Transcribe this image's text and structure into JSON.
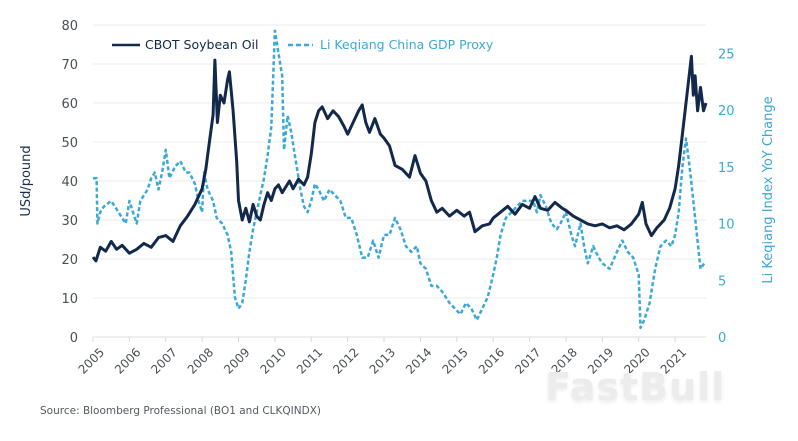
{
  "chart_data": {
    "type": "line",
    "title": "",
    "source": "Source: Bloomberg Professional (BO1 and CLKQINDX)",
    "watermark": "FastBull",
    "x": {
      "label": "",
      "range": [
        2005.0,
        2021.85
      ],
      "ticks": [
        "2005",
        "2006",
        "2007",
        "2008",
        "2009",
        "2010",
        "2011",
        "2012",
        "2013",
        "2014",
        "2015",
        "2016",
        "2017",
        "2018",
        "2019",
        "2020",
        "2021"
      ]
    },
    "y_left": {
      "label": "USd/pound",
      "range": [
        0,
        80
      ],
      "ticks": [
        0,
        10,
        20,
        30,
        40,
        50,
        60,
        70,
        80
      ],
      "grid": true
    },
    "y_right": {
      "label": "Li Keqiang Index YoY Change",
      "range": [
        0,
        27.5
      ],
      "ticks": [
        0,
        5,
        10,
        15,
        20,
        25
      ]
    },
    "legend": {
      "placement": "top-left",
      "entries": [
        "CBOT Soybean Oil",
        "Li Keqiang China GDP Proxy"
      ]
    },
    "series": [
      {
        "name": "CBOT Soybean Oil",
        "axis": "left",
        "color": "#13294b",
        "style": "solid",
        "points": [
          [
            2005.0,
            20.5
          ],
          [
            2005.08,
            19.5
          ],
          [
            2005.2,
            23
          ],
          [
            2005.35,
            22
          ],
          [
            2005.5,
            24.5
          ],
          [
            2005.65,
            22.5
          ],
          [
            2005.8,
            23.5
          ],
          [
            2006.0,
            21.5
          ],
          [
            2006.2,
            22.5
          ],
          [
            2006.4,
            24
          ],
          [
            2006.6,
            23
          ],
          [
            2006.8,
            25.5
          ],
          [
            2007.0,
            26
          ],
          [
            2007.2,
            24.5
          ],
          [
            2007.4,
            28.5
          ],
          [
            2007.6,
            31
          ],
          [
            2007.8,
            34
          ],
          [
            2008.0,
            38
          ],
          [
            2008.1,
            43
          ],
          [
            2008.2,
            50
          ],
          [
            2008.3,
            57
          ],
          [
            2008.35,
            71
          ],
          [
            2008.42,
            55
          ],
          [
            2008.5,
            62
          ],
          [
            2008.6,
            60
          ],
          [
            2008.7,
            66
          ],
          [
            2008.75,
            68
          ],
          [
            2008.85,
            58
          ],
          [
            2008.95,
            45
          ],
          [
            2009.0,
            35
          ],
          [
            2009.1,
            30
          ],
          [
            2009.2,
            33
          ],
          [
            2009.3,
            29.5
          ],
          [
            2009.4,
            34
          ],
          [
            2009.5,
            31
          ],
          [
            2009.6,
            30
          ],
          [
            2009.7,
            34
          ],
          [
            2009.8,
            37
          ],
          [
            2009.9,
            35
          ],
          [
            2010.0,
            38
          ],
          [
            2010.1,
            39
          ],
          [
            2010.2,
            37
          ],
          [
            2010.4,
            40
          ],
          [
            2010.5,
            38
          ],
          [
            2010.65,
            40.5
          ],
          [
            2010.8,
            39
          ],
          [
            2010.9,
            41
          ],
          [
            2011.0,
            47
          ],
          [
            2011.1,
            55
          ],
          [
            2011.2,
            58
          ],
          [
            2011.3,
            59
          ],
          [
            2011.45,
            56
          ],
          [
            2011.6,
            58
          ],
          [
            2011.75,
            56.5
          ],
          [
            2011.9,
            54
          ],
          [
            2012.0,
            52
          ],
          [
            2012.15,
            55
          ],
          [
            2012.3,
            58
          ],
          [
            2012.4,
            59.5
          ],
          [
            2012.5,
            55
          ],
          [
            2012.6,
            52.5
          ],
          [
            2012.75,
            56
          ],
          [
            2012.9,
            52
          ],
          [
            2013.0,
            51
          ],
          [
            2013.15,
            49
          ],
          [
            2013.3,
            44
          ],
          [
            2013.5,
            43
          ],
          [
            2013.7,
            41
          ],
          [
            2013.85,
            46.5
          ],
          [
            2014.0,
            42
          ],
          [
            2014.15,
            40
          ],
          [
            2014.3,
            35
          ],
          [
            2014.45,
            32
          ],
          [
            2014.6,
            33
          ],
          [
            2014.8,
            31
          ],
          [
            2015.0,
            32.5
          ],
          [
            2015.2,
            31
          ],
          [
            2015.35,
            32
          ],
          [
            2015.5,
            27
          ],
          [
            2015.7,
            28.5
          ],
          [
            2015.9,
            29
          ],
          [
            2016.0,
            30.5
          ],
          [
            2016.2,
            32
          ],
          [
            2016.4,
            33.5
          ],
          [
            2016.6,
            31.5
          ],
          [
            2016.8,
            34
          ],
          [
            2017.0,
            33
          ],
          [
            2017.15,
            36
          ],
          [
            2017.3,
            33
          ],
          [
            2017.5,
            32.5
          ],
          [
            2017.7,
            34.5
          ],
          [
            2017.9,
            33
          ],
          [
            2018.0,
            32.5
          ],
          [
            2018.2,
            31
          ],
          [
            2018.4,
            30
          ],
          [
            2018.6,
            29
          ],
          [
            2018.8,
            28.5
          ],
          [
            2019.0,
            29
          ],
          [
            2019.2,
            28
          ],
          [
            2019.4,
            28.5
          ],
          [
            2019.6,
            27.5
          ],
          [
            2019.8,
            29
          ],
          [
            2020.0,
            31.5
          ],
          [
            2020.1,
            34.5
          ],
          [
            2020.2,
            29
          ],
          [
            2020.35,
            26
          ],
          [
            2020.5,
            28
          ],
          [
            2020.7,
            30
          ],
          [
            2020.85,
            33
          ],
          [
            2021.0,
            38
          ],
          [
            2021.1,
            44
          ],
          [
            2021.2,
            52
          ],
          [
            2021.3,
            60
          ],
          [
            2021.4,
            68
          ],
          [
            2021.45,
            72
          ],
          [
            2021.5,
            62
          ],
          [
            2021.55,
            67
          ],
          [
            2021.62,
            58
          ],
          [
            2021.7,
            64
          ],
          [
            2021.78,
            58
          ],
          [
            2021.85,
            60
          ]
        ]
      },
      {
        "name": "Li Keqiang China GDP Proxy",
        "axis": "right",
        "color": "#3aa9d6",
        "style": "dashed",
        "points": [
          [
            2005.0,
            14
          ],
          [
            2005.1,
            14
          ],
          [
            2005.12,
            10
          ],
          [
            2005.2,
            11
          ],
          [
            2005.3,
            11.5
          ],
          [
            2005.5,
            12
          ],
          [
            2005.7,
            11
          ],
          [
            2005.8,
            10.5
          ],
          [
            2005.9,
            10
          ],
          [
            2006.0,
            12
          ],
          [
            2006.1,
            11
          ],
          [
            2006.2,
            10
          ],
          [
            2006.3,
            12
          ],
          [
            2006.5,
            13
          ],
          [
            2006.6,
            14
          ],
          [
            2006.7,
            14.5
          ],
          [
            2006.8,
            13
          ],
          [
            2006.9,
            14.5
          ],
          [
            2007.0,
            16.5
          ],
          [
            2007.1,
            14
          ],
          [
            2007.25,
            15
          ],
          [
            2007.4,
            15.5
          ],
          [
            2007.55,
            14.5
          ],
          [
            2007.65,
            14.5
          ],
          [
            2007.8,
            13.5
          ],
          [
            2007.9,
            12
          ],
          [
            2008.0,
            11
          ],
          [
            2008.05,
            14.5
          ],
          [
            2008.15,
            13
          ],
          [
            2008.3,
            12
          ],
          [
            2008.4,
            10.5
          ],
          [
            2008.55,
            10
          ],
          [
            2008.7,
            9
          ],
          [
            2008.8,
            7.5
          ],
          [
            2008.9,
            3.5
          ],
          [
            2009.0,
            2.5
          ],
          [
            2009.1,
            3
          ],
          [
            2009.2,
            5
          ],
          [
            2009.3,
            7.5
          ],
          [
            2009.4,
            9.5
          ],
          [
            2009.5,
            11
          ],
          [
            2009.6,
            12.5
          ],
          [
            2009.7,
            14
          ],
          [
            2009.8,
            16
          ],
          [
            2009.9,
            18.5
          ],
          [
            2010.0,
            27
          ],
          [
            2010.1,
            25
          ],
          [
            2010.2,
            23
          ],
          [
            2010.25,
            16.5
          ],
          [
            2010.35,
            19.5
          ],
          [
            2010.45,
            18
          ],
          [
            2010.55,
            16
          ],
          [
            2010.7,
            13
          ],
          [
            2010.8,
            11.5
          ],
          [
            2010.9,
            11
          ],
          [
            2011.0,
            12
          ],
          [
            2011.1,
            13.5
          ],
          [
            2011.2,
            13
          ],
          [
            2011.35,
            12
          ],
          [
            2011.5,
            13
          ],
          [
            2011.65,
            12.5
          ],
          [
            2011.8,
            12
          ],
          [
            2011.95,
            10.5
          ],
          [
            2012.1,
            10.5
          ],
          [
            2012.25,
            9
          ],
          [
            2012.4,
            7
          ],
          [
            2012.55,
            7
          ],
          [
            2012.7,
            8.5
          ],
          [
            2012.85,
            7
          ],
          [
            2013.0,
            9
          ],
          [
            2013.15,
            9
          ],
          [
            2013.3,
            10.5
          ],
          [
            2013.45,
            9.5
          ],
          [
            2013.6,
            8
          ],
          [
            2013.75,
            7.5
          ],
          [
            2013.9,
            8
          ],
          [
            2014.0,
            6.5
          ],
          [
            2014.15,
            6
          ],
          [
            2014.3,
            4.5
          ],
          [
            2014.45,
            4.5
          ],
          [
            2014.6,
            4
          ],
          [
            2014.8,
            3
          ],
          [
            2014.95,
            2.5
          ],
          [
            2015.1,
            2
          ],
          [
            2015.25,
            3
          ],
          [
            2015.4,
            2.5
          ],
          [
            2015.55,
            1.5
          ],
          [
            2015.7,
            2.5
          ],
          [
            2015.85,
            3.5
          ],
          [
            2016.0,
            5.5
          ],
          [
            2016.1,
            7
          ],
          [
            2016.2,
            9
          ],
          [
            2016.35,
            10.5
          ],
          [
            2016.5,
            11
          ],
          [
            2016.65,
            11.5
          ],
          [
            2016.8,
            12
          ],
          [
            2016.95,
            12
          ],
          [
            2017.1,
            12
          ],
          [
            2017.2,
            11
          ],
          [
            2017.3,
            12.5
          ],
          [
            2017.45,
            11.5
          ],
          [
            2017.6,
            10
          ],
          [
            2017.75,
            9.5
          ],
          [
            2017.85,
            10
          ],
          [
            2018.0,
            11
          ],
          [
            2018.15,
            9
          ],
          [
            2018.25,
            8
          ],
          [
            2018.4,
            10
          ],
          [
            2018.5,
            8
          ],
          [
            2018.6,
            6.5
          ],
          [
            2018.75,
            8
          ],
          [
            2018.9,
            7
          ],
          [
            2019.0,
            6.5
          ],
          [
            2019.2,
            6
          ],
          [
            2019.4,
            7.5
          ],
          [
            2019.55,
            8.5
          ],
          [
            2019.7,
            7.5
          ],
          [
            2019.85,
            7
          ],
          [
            2020.0,
            5.5
          ],
          [
            2020.05,
            0.8
          ],
          [
            2020.15,
            1.5
          ],
          [
            2020.3,
            3
          ],
          [
            2020.45,
            6
          ],
          [
            2020.6,
            8
          ],
          [
            2020.75,
            8.5
          ],
          [
            2020.9,
            8
          ],
          [
            2021.0,
            9
          ],
          [
            2021.1,
            11
          ],
          [
            2021.2,
            15
          ],
          [
            2021.3,
            17.5
          ],
          [
            2021.4,
            15
          ],
          [
            2021.5,
            12
          ],
          [
            2021.6,
            9
          ],
          [
            2021.7,
            6
          ],
          [
            2021.8,
            6.5
          ],
          [
            2021.85,
            6.5
          ]
        ]
      }
    ]
  }
}
